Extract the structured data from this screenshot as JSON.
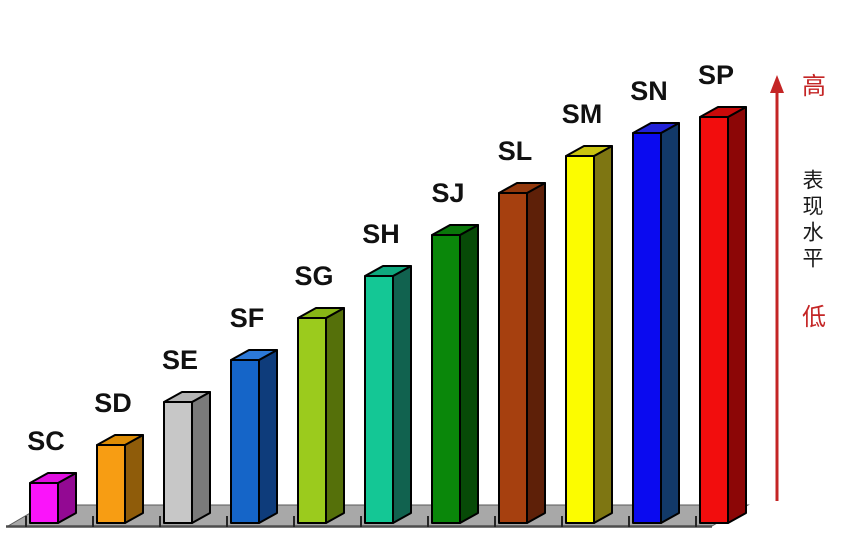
{
  "chart_data": {
    "type": "bar",
    "style": "3d-columns",
    "title": "",
    "xlabel": "",
    "ylabel": "表现水平",
    "grid": false,
    "legend": false,
    "categories": [
      "SC",
      "SD",
      "SE",
      "SF",
      "SG",
      "SH",
      "SJ",
      "SL",
      "SM",
      "SN",
      "SP"
    ],
    "values": [
      40,
      78,
      121,
      163,
      205,
      247,
      288,
      330,
      367,
      390,
      406
    ],
    "values_unit": "relative column height (qualitative scale 低→高, no numeric axis shown)",
    "ylim": [
      0,
      420
    ],
    "bars": [
      {
        "label": "SC",
        "value": 40,
        "front": "#FA14FA",
        "top": "#DF10DF",
        "side": "#930993"
      },
      {
        "label": "SD",
        "value": 78,
        "front": "#F79D13",
        "top": "#DD8C05",
        "side": "#8F5C0A"
      },
      {
        "label": "SE",
        "value": 121,
        "front": "#C7C7C7",
        "top": "#B4B4B4",
        "side": "#7A7A7A"
      },
      {
        "label": "SF",
        "value": 163,
        "front": "#1565C8",
        "top": "#2C79D8",
        "side": "#0E3C7B"
      },
      {
        "label": "SG",
        "value": 205,
        "front": "#9BCB1D",
        "top": "#88B616",
        "side": "#55700A"
      },
      {
        "label": "SH",
        "value": 247,
        "front": "#14C795",
        "top": "#0FA87E",
        "side": "#11624F"
      },
      {
        "label": "SJ",
        "value": 288,
        "front": "#0A870A",
        "top": "#0A770A",
        "side": "#074A07"
      },
      {
        "label": "SL",
        "value": 330,
        "front": "#A6400F",
        "top": "#92380C",
        "side": "#5E2008"
      },
      {
        "label": "SM",
        "value": 367,
        "front": "#FCFC00",
        "top": "#C9C410",
        "side": "#7E7612"
      },
      {
        "label": "SN",
        "value": 390,
        "front": "#0A0AF0",
        "top": "#2222D8",
        "side": "#123968"
      },
      {
        "label": "SP",
        "value": 406,
        "front": "#F20D0D",
        "top": "#C80A0A",
        "side": "#8C0606"
      }
    ],
    "floor_color": "#A8A8A8",
    "floor_edge_color": "#5A5A5A",
    "axis_line_color": "#4D4D4D",
    "tick_color": "#262626",
    "outline_color": "#000000"
  },
  "annotation": {
    "high_label": "高",
    "axis_label": "表现水平",
    "low_label": "低",
    "arrow_color": "#C42525",
    "extreme_label_color": "#C42525",
    "axis_label_color": "#1A1A1A"
  }
}
